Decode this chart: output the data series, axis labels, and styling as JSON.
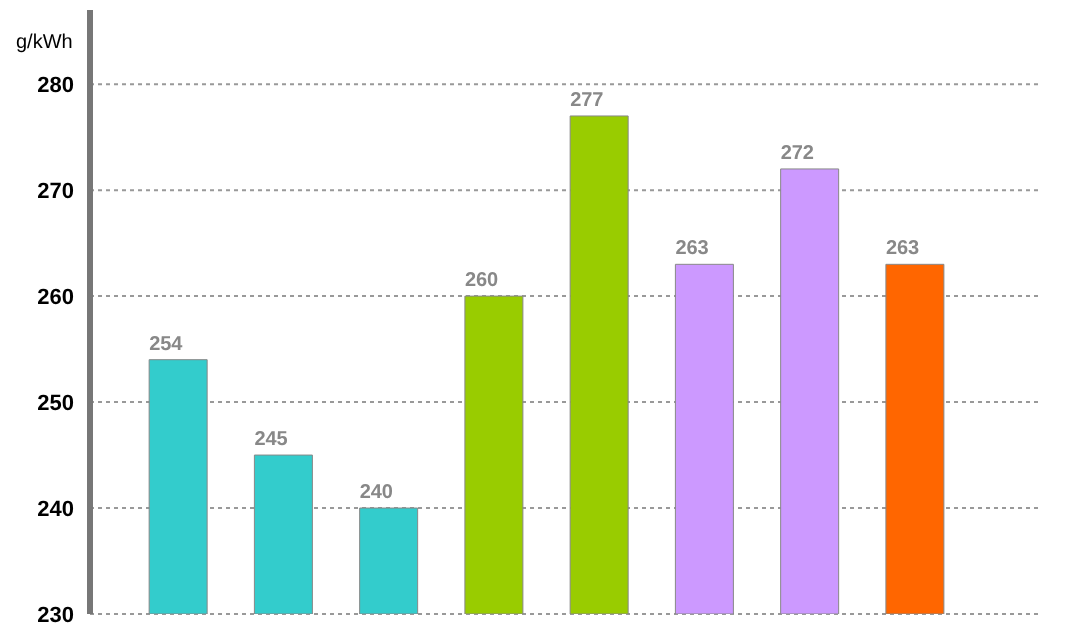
{
  "chart_data": {
    "type": "bar",
    "ylabel": "g/kWh",
    "categories": [
      null,
      null,
      null,
      null,
      null,
      null,
      null,
      null
    ],
    "values": [
      254,
      245,
      240,
      260,
      277,
      263,
      272,
      263
    ],
    "colors": [
      "#33cccc",
      "#33cccc",
      "#33cccc",
      "#99cc00",
      "#99cc00",
      "#cc99ff",
      "#cc99ff",
      "#ff6600"
    ],
    "ylim": [
      230,
      287
    ],
    "yticks": [
      230,
      240,
      250,
      260,
      270,
      280
    ],
    "grid": "y",
    "data_labels": true,
    "legend": false
  }
}
